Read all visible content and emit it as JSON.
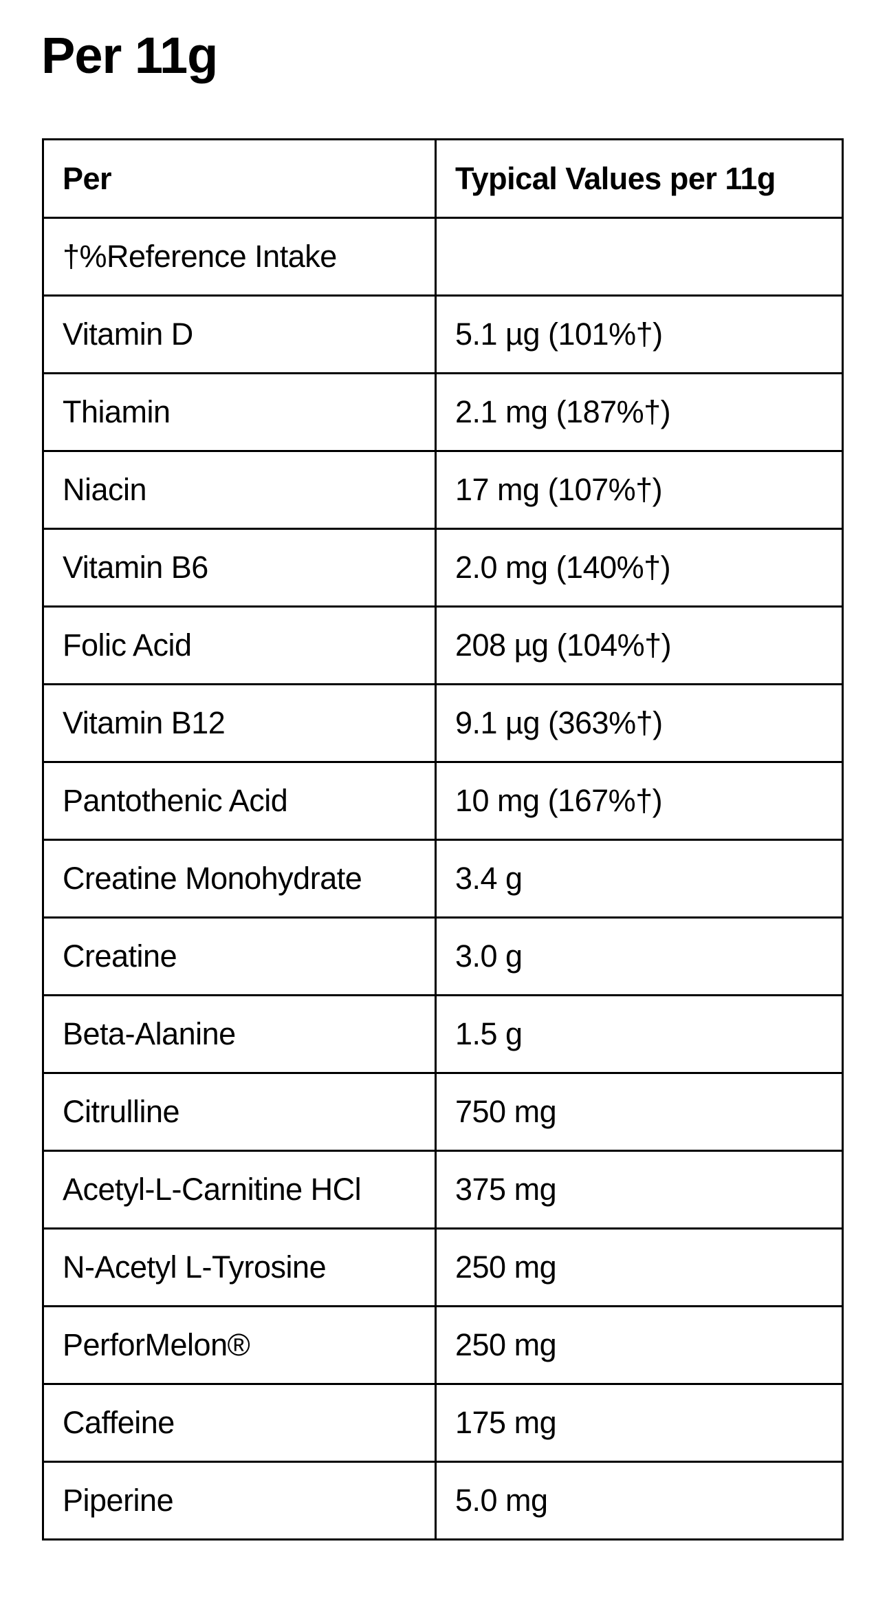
{
  "title": "Per 11g",
  "table": {
    "headers": [
      "Per",
      "Typical Values per 11g"
    ],
    "rows": [
      [
        "†%Reference Intake",
        ""
      ],
      [
        "Vitamin D",
        "5.1 µg (101%†)"
      ],
      [
        "Thiamin",
        "2.1 mg (187%†)"
      ],
      [
        "Niacin",
        "17 mg (107%†)"
      ],
      [
        "Vitamin B6",
        "2.0 mg (140%†)"
      ],
      [
        "Folic Acid",
        "208 µg (104%†)"
      ],
      [
        "Vitamin B12",
        "9.1 µg (363%†)"
      ],
      [
        "Pantothenic Acid",
        "10 mg (167%†)"
      ],
      [
        "Creatine Monohydrate",
        "3.4 g"
      ],
      [
        "Creatine",
        "3.0 g"
      ],
      [
        "Beta-Alanine",
        "1.5 g"
      ],
      [
        "Citrulline",
        "750 mg"
      ],
      [
        "Acetyl-L-Carnitine HCl",
        "375 mg"
      ],
      [
        "N-Acetyl L-Tyrosine",
        "250 mg"
      ],
      [
        "PerforMelon®",
        "250 mg"
      ],
      [
        "Caffeine",
        "175 mg"
      ],
      [
        "Piperine",
        "5.0 mg"
      ]
    ]
  }
}
